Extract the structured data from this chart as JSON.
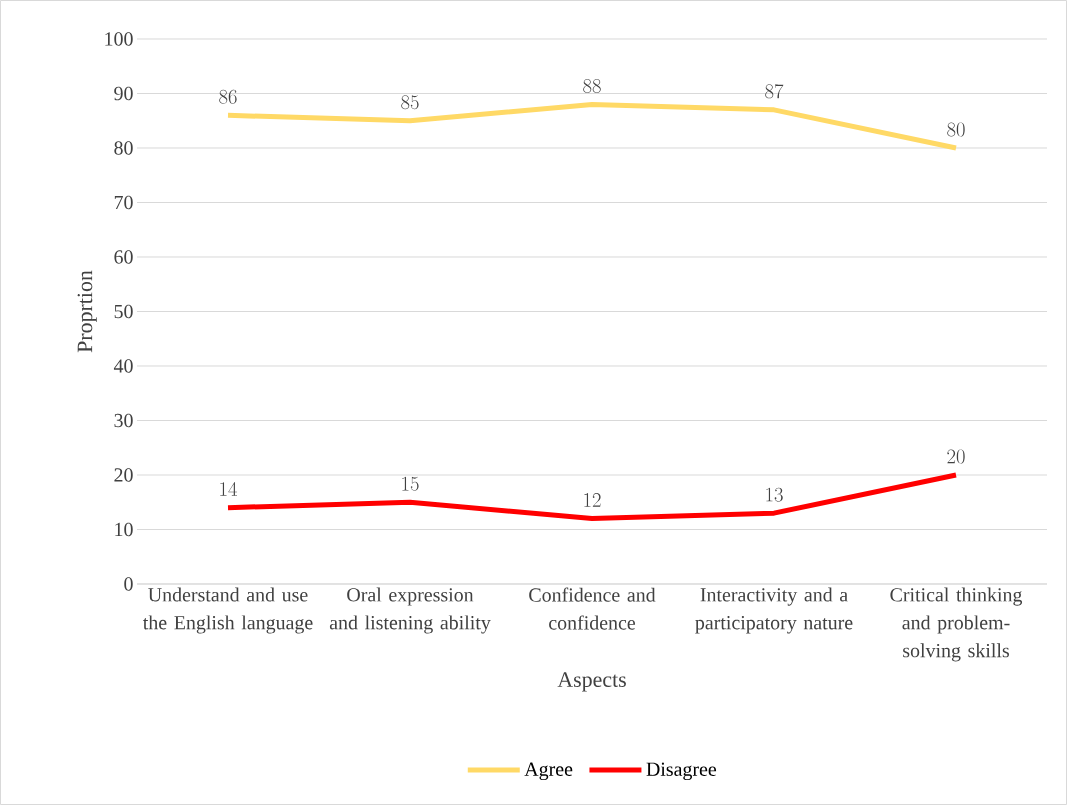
{
  "chart_data": {
    "type": "line",
    "xlabel": "Aspects",
    "ylabel": "Proprtion",
    "categories": [
      "Understand and use the English language",
      "Oral expression and listening ability",
      "Confidence and confidence",
      "Interactivity and a participatory nature",
      "Critical thinking and problem-solving skills"
    ],
    "series": [
      {
        "name": "Agree",
        "color": "#ffd966",
        "values": [
          86,
          85,
          88,
          87,
          80
        ]
      },
      {
        "name": "Disagree",
        "color": "#ff0000",
        "values": [
          14,
          15,
          12,
          13,
          20
        ]
      }
    ],
    "ylim": [
      0,
      100
    ],
    "yticks": [
      0,
      10,
      20,
      30,
      40,
      50,
      60,
      70,
      80,
      90,
      100
    ],
    "grid": "y",
    "legend": "bottom",
    "data_labels": true,
    "marker": "none",
    "line_style": "solid"
  }
}
